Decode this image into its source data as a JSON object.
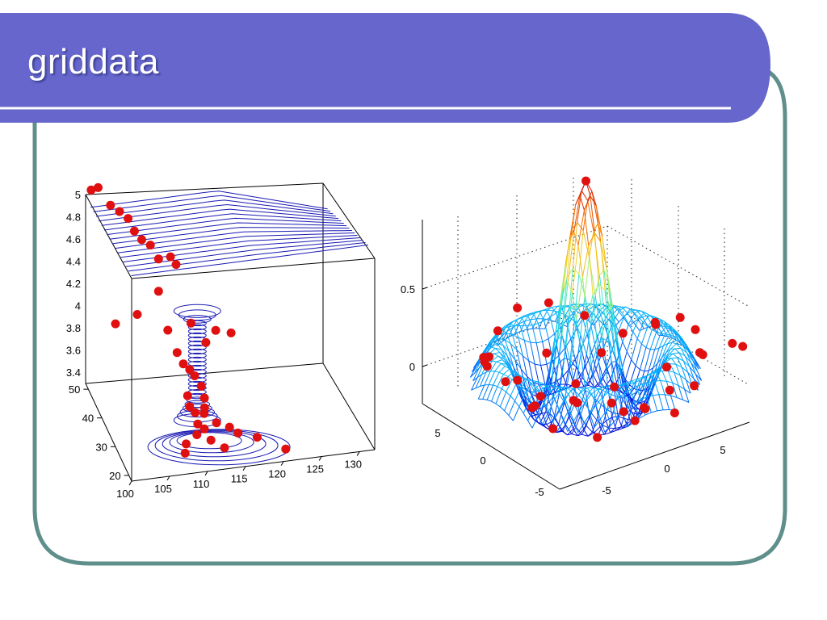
{
  "title": "griddata",
  "colors": {
    "banner": "#6666cc",
    "frame_border": "#5f8f8a",
    "contour_line": "#1a1ab4",
    "marker": "#e01010"
  },
  "chart_data": [
    {
      "type": "3d-contour-scatter",
      "title": "",
      "x_ticks": [
        "100",
        "105",
        "110",
        "115",
        "120",
        "125",
        "130"
      ],
      "y_ticks": [
        "20",
        "30",
        "40",
        "50"
      ],
      "z_ticks": [
        "3.4",
        "3.6",
        "3.8",
        "4",
        "4.2",
        "4.4",
        "4.6",
        "4.8",
        "5"
      ],
      "xlim": [
        100,
        132
      ],
      "ylim": [
        18,
        52
      ],
      "zlim": [
        3.3,
        5
      ],
      "series": [
        {
          "marker": "filled-circle",
          "color": "#e01010",
          "points": [
            [
              100.2,
              49.0,
              5.0
            ],
            [
              101.2,
              49.5,
              5.0
            ],
            [
              102.4,
              47.1,
              4.9
            ],
            [
              103.5,
              46.6,
              4.85
            ],
            [
              104.5,
              45.9,
              4.8
            ],
            [
              105.1,
              44.6,
              4.72
            ],
            [
              106.0,
              44.2,
              4.65
            ],
            [
              107.1,
              44.0,
              4.6
            ],
            [
              108.0,
              43.0,
              4.5
            ],
            [
              109.6,
              43.2,
              4.5
            ],
            [
              110.2,
              42.4,
              4.45
            ],
            [
              107.5,
              40.2,
              4.3
            ],
            [
              101.3,
              37.2,
              4.15
            ],
            [
              104.2,
              37.4,
              4.2
            ],
            [
              107.9,
              35.6,
              4.08
            ],
            [
              110.9,
              35.4,
              4.12
            ],
            [
              113.9,
              33.9,
              4.07
            ],
            [
              115.8,
              33.2,
              4.05
            ],
            [
              112.8,
              35.0,
              3.95
            ],
            [
              109.0,
              34.9,
              3.9
            ],
            [
              109.8,
              34.8,
              3.8
            ],
            [
              110.6,
              34.6,
              3.75
            ],
            [
              111.2,
              34.3,
              3.7
            ],
            [
              112.1,
              34.5,
              3.6
            ],
            [
              110.2,
              33.9,
              3.55
            ],
            [
              112.5,
              34.4,
              3.5
            ],
            [
              110.5,
              34.1,
              3.45
            ],
            [
              112.5,
              34.3,
              3.42
            ],
            [
              111.2,
              33.9,
              3.4
            ],
            [
              112.4,
              34.0,
              3.38
            ],
            [
              111.2,
              32.0,
              3.35
            ],
            [
              113.6,
              31.6,
              3.35
            ],
            [
              111.8,
              30.5,
              3.34
            ],
            [
              115.1,
              30.4,
              3.33
            ],
            [
              110.6,
              29.3,
              3.33
            ],
            [
              115.8,
              28.1,
              3.33
            ],
            [
              108.8,
              27.1,
              3.32
            ],
            [
              112.1,
              27.3,
              3.32
            ],
            [
              118.0,
              26.3,
              3.32
            ],
            [
              108.2,
              24.5,
              3.31
            ],
            [
              113.4,
              24.6,
              3.31
            ],
            [
              121.0,
              22.0,
              3.3
            ]
          ]
        }
      ]
    },
    {
      "type": "3d-mesh-scatter",
      "title": "",
      "x_ticks": [
        "-5",
        "0",
        "5"
      ],
      "y_ticks": [
        "-5",
        "0",
        "5"
      ],
      "z_ticks": [
        "0",
        "0.5"
      ],
      "xlim": [
        -8,
        8
      ],
      "ylim": [
        -8,
        8
      ],
      "zlim": [
        -0.2,
        0.9
      ],
      "surface_function": "sin(r)/r",
      "series": [
        {
          "marker": "filled-circle",
          "color": "#e01010",
          "points": [
            [
              0.0,
              0.0,
              0.89
            ],
            [
              -7.5,
              -1.0,
              0.12
            ],
            [
              -6.8,
              2.1,
              0.1
            ],
            [
              -5.8,
              3.8,
              0.06
            ],
            [
              -4.4,
              5.2,
              0.02
            ],
            [
              -2.8,
              6.4,
              0.08
            ],
            [
              -0.5,
              7.3,
              0.12
            ],
            [
              2.0,
              7.1,
              0.1
            ],
            [
              4.3,
              6.1,
              0.02
            ],
            [
              6.3,
              4.4,
              -0.06
            ],
            [
              7.5,
              2.3,
              0.02
            ],
            [
              7.8,
              -0.2,
              0.1
            ],
            [
              7.2,
              -2.8,
              0.12
            ],
            [
              6.2,
              -4.7,
              0.08
            ],
            [
              4.5,
              -6.4,
              0.0
            ],
            [
              2.2,
              -7.3,
              -0.06
            ],
            [
              -0.5,
              -7.6,
              0.02
            ],
            [
              -2.9,
              -7.0,
              0.08
            ],
            [
              -5.1,
              -5.6,
              0.1
            ],
            [
              -6.9,
              -3.6,
              0.06
            ],
            [
              -3.5,
              -1.0,
              -0.18
            ],
            [
              -2.8,
              2.4,
              -0.18
            ],
            [
              -1.0,
              3.9,
              -0.2
            ],
            [
              1.6,
              3.4,
              -0.18
            ],
            [
              3.4,
              1.4,
              -0.18
            ],
            [
              3.6,
              -1.8,
              -0.2
            ],
            [
              1.6,
              -3.5,
              -0.18
            ],
            [
              -1.5,
              -3.4,
              -0.2
            ],
            [
              -4.9,
              1.2,
              0.02
            ],
            [
              -4.0,
              -4.5,
              0.04
            ],
            [
              5.0,
              -2.5,
              -0.02
            ],
            [
              4.2,
              4.0,
              -0.1
            ],
            [
              0.3,
              5.0,
              -0.05
            ],
            [
              -5.3,
              4.6,
              0.05
            ],
            [
              6.6,
              1.0,
              0.06
            ],
            [
              -0.8,
              -5.5,
              -0.04
            ],
            [
              2.8,
              -5.9,
              0.0
            ],
            [
              5.8,
              -5.6,
              0.1
            ],
            [
              8.0,
              -6.0,
              0.12
            ],
            [
              8.3,
              -6.8,
              0.12
            ]
          ]
        }
      ]
    }
  ]
}
